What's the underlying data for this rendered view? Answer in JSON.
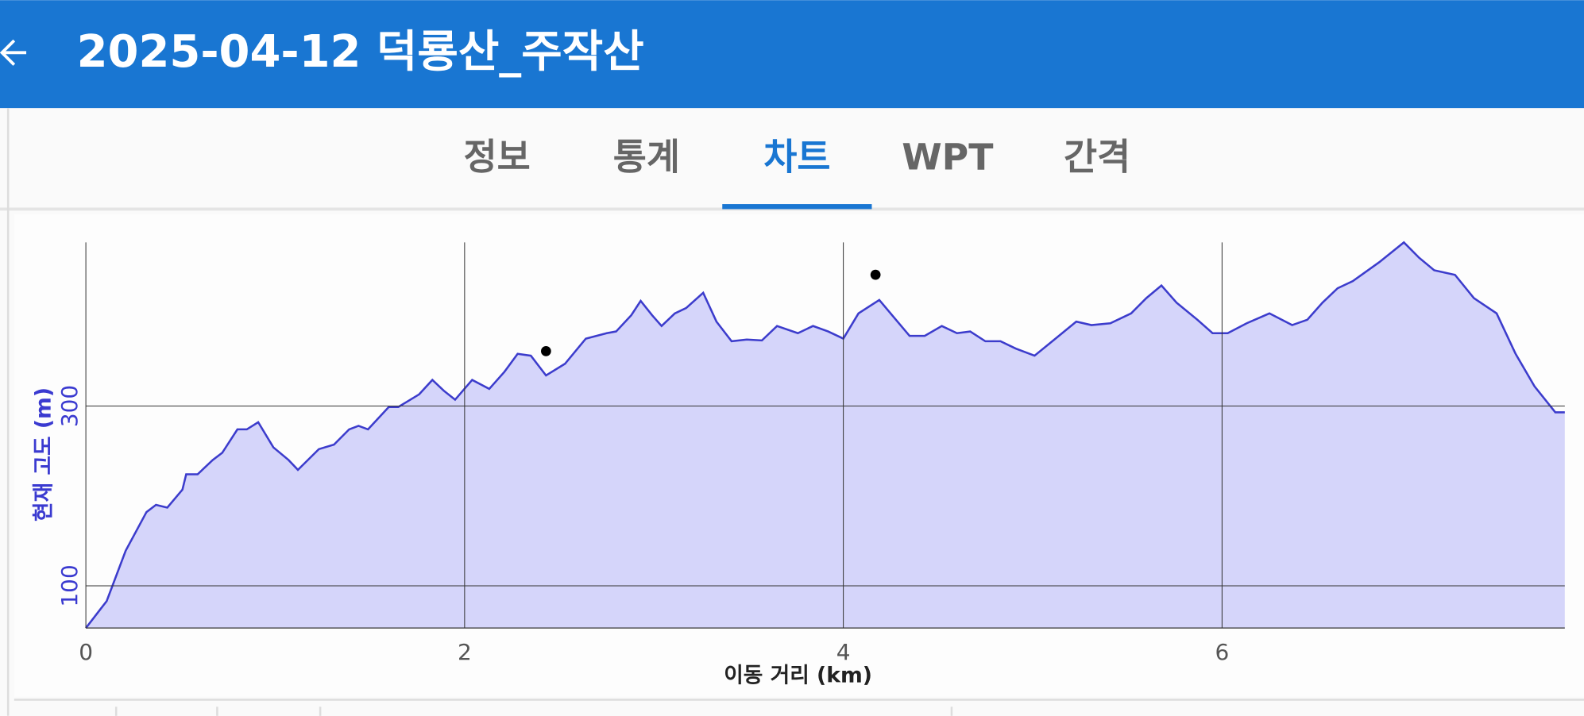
{
  "header": {
    "title": "2025-04-12 덕룡산_주작산"
  },
  "tabs": [
    "정보",
    "통계",
    "차트",
    "WPT",
    "간격"
  ],
  "selected_tab": 2,
  "chart_data": {
    "type": "area",
    "x_label": "이동 거리 (km)",
    "y_label": "현재 고도 (m)",
    "xlim": [
      0,
      7.81
    ],
    "xticks": [
      0,
      2,
      4,
      6
    ],
    "ylim": [
      53,
      482
    ],
    "yticks": [
      100,
      300
    ],
    "grid": true,
    "series": [
      {
        "color": "#3c3ccc",
        "x": [
          0,
          0.11,
          0.21,
          0.32,
          0.37,
          0.43,
          0.51,
          0.53,
          0.59,
          0.67,
          0.72,
          0.8,
          0.85,
          0.91,
          0.99,
          1.07,
          1.12,
          1.23,
          1.31,
          1.39,
          1.44,
          1.49,
          1.6,
          1.65,
          1.76,
          1.83,
          1.89,
          1.95,
          2.04,
          2.13,
          2.21,
          2.28,
          2.35,
          2.43,
          2.53,
          2.64,
          2.75,
          2.8,
          2.88,
          2.93,
          2.99,
          3.04,
          3.11,
          3.17,
          3.26,
          3.33,
          3.41,
          3.49,
          3.57,
          3.65,
          3.76,
          3.84,
          3.92,
          4.0,
          4.08,
          4.19,
          4.27,
          4.35,
          4.43,
          4.52,
          4.6,
          4.67,
          4.75,
          4.83,
          4.91,
          5.01,
          5.12,
          5.23,
          5.31,
          5.41,
          5.52,
          5.6,
          5.68,
          5.76,
          5.87,
          5.95,
          6.03,
          6.13,
          6.25,
          6.37,
          6.45,
          6.53,
          6.61,
          6.69,
          6.83,
          6.96,
          7.04,
          7.12,
          7.23,
          7.33,
          7.45,
          7.55,
          7.65,
          7.76,
          7.81
        ],
        "values": [
          53,
          83,
          139,
          182,
          190,
          187,
          207,
          224,
          224,
          240,
          248,
          274,
          274,
          282,
          254,
          240,
          229,
          252,
          257,
          274,
          278,
          274,
          299,
          299,
          313,
          329,
          317,
          307,
          329,
          319,
          338,
          358,
          356,
          334,
          347,
          375,
          381,
          383,
          401,
          417,
          401,
          389,
          403,
          409,
          426,
          394,
          372,
          374,
          373,
          389,
          381,
          389,
          383,
          375,
          403,
          418,
          398,
          378,
          378,
          389,
          381,
          383,
          372,
          372,
          364,
          356,
          375,
          394,
          390,
          392,
          403,
          420,
          434,
          415,
          396,
          381,
          381,
          392,
          403,
          390,
          396,
          415,
          431,
          439,
          460,
          482,
          465,
          451,
          446,
          420,
          403,
          358,
          322,
          293,
          293
        ]
      }
    ],
    "points": {
      "color": "#000000",
      "x": [
        2.43,
        4.17
      ],
      "values": [
        361,
        446
      ]
    }
  }
}
